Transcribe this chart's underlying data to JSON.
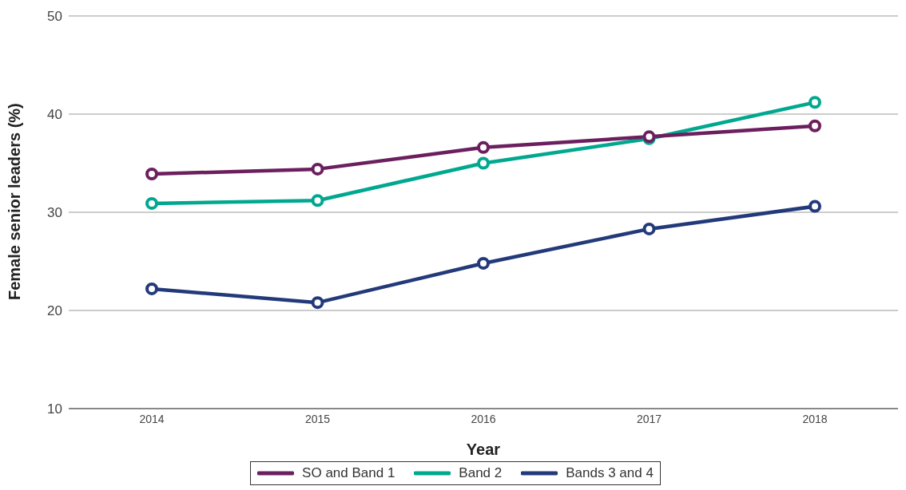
{
  "chart_data": {
    "type": "line",
    "xlabel": "Year",
    "ylabel": "Female senior leaders (%)",
    "categories": [
      "2014",
      "2015",
      "2016",
      "2017",
      "2018"
    ],
    "series": [
      {
        "name": "SO and Band 1",
        "color": "#6b1f5f",
        "values": [
          33.9,
          34.4,
          36.6,
          37.7,
          38.8
        ]
      },
      {
        "name": "Band 2",
        "color": "#00a88f",
        "values": [
          30.9,
          31.2,
          35.0,
          37.5,
          41.2
        ]
      },
      {
        "name": "Bands 3 and 4",
        "color": "#233a7a",
        "values": [
          22.2,
          20.8,
          24.8,
          28.3,
          30.6
        ]
      }
    ],
    "ylim": [
      10,
      50
    ],
    "yticks": [
      10,
      20,
      30,
      40,
      50
    ],
    "grid": "y",
    "legend": "bottom",
    "marker": "circle",
    "line_style": "solid"
  }
}
